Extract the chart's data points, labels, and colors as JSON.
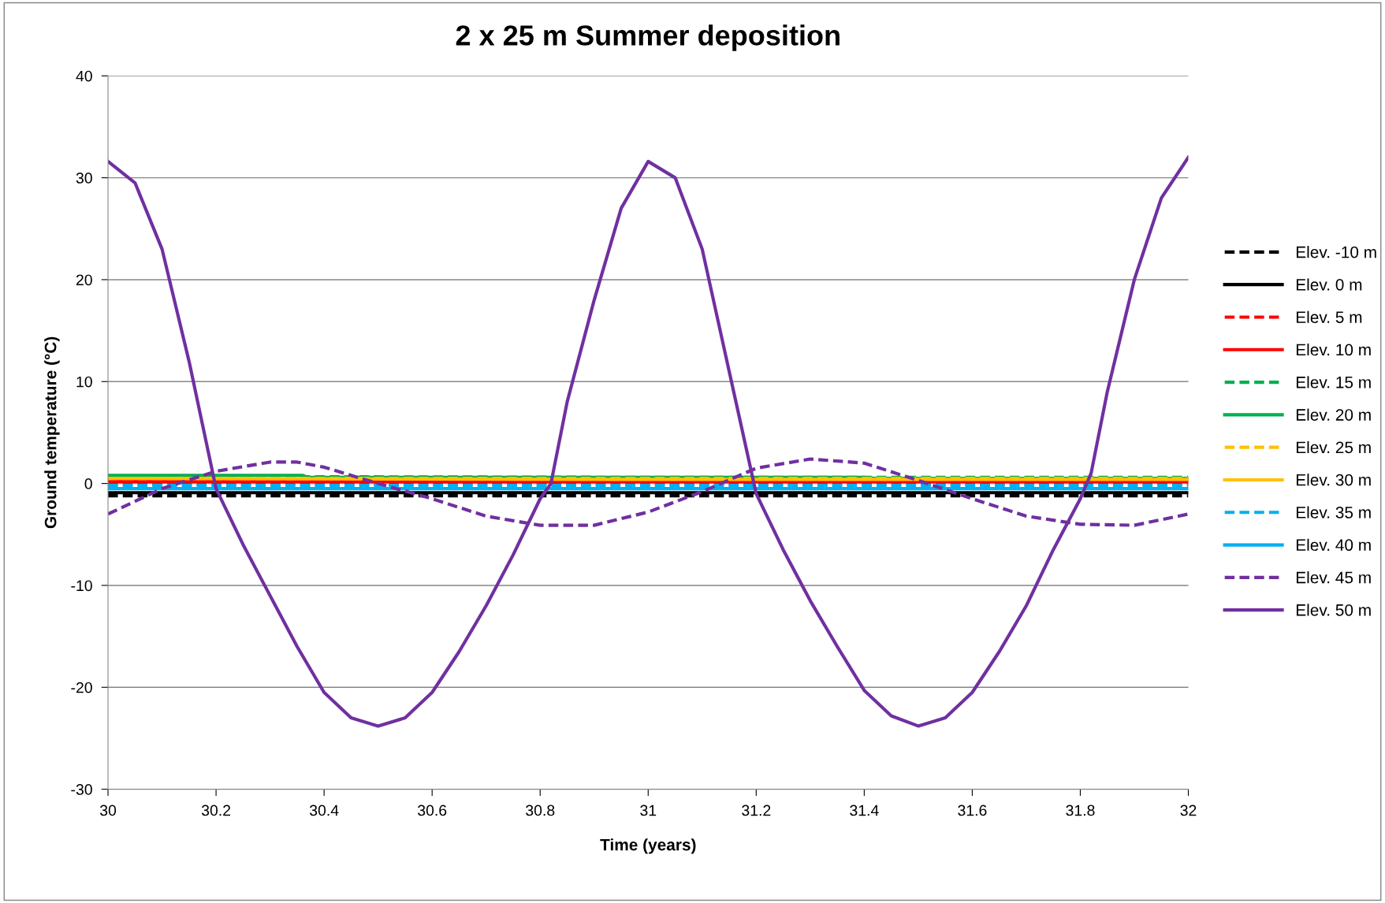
{
  "chart_data": {
    "type": "line",
    "title": "2 x 25 m Summer deposition",
    "xlabel": "Time (years)",
    "ylabel": "Ground temperature (°C)",
    "xlim": [
      30,
      32
    ],
    "xticks": [
      30,
      30.2,
      30.4,
      30.6,
      30.8,
      31,
      31.2,
      31.4,
      31.6,
      31.8,
      32
    ],
    "ylim": [
      -30,
      40
    ],
    "yticks": [
      -30,
      -20,
      -10,
      0,
      10,
      20,
      30,
      40
    ],
    "grid": "y",
    "legend": "right",
    "marker": "none",
    "series": [
      {
        "name": "Elev. -10 m",
        "color": "#000000",
        "line_style": "dashed",
        "x": [
          30,
          31,
          32
        ],
        "values": [
          -1.2,
          -1.2,
          -1.2
        ]
      },
      {
        "name": "Elev. 0 m",
        "color": "#000000",
        "line_style": "solid",
        "x": [
          30,
          31,
          32
        ],
        "values": [
          -0.9,
          -0.9,
          -0.9
        ]
      },
      {
        "name": "Elev. 5 m",
        "color": "#ff0000",
        "line_style": "dashed",
        "x": [
          30,
          31,
          32
        ],
        "values": [
          -0.1,
          -0.1,
          -0.1
        ]
      },
      {
        "name": "Elev. 10 m",
        "color": "#ff0000",
        "line_style": "solid",
        "x": [
          30,
          31,
          32
        ],
        "values": [
          0.2,
          0.2,
          0.2
        ]
      },
      {
        "name": "Elev. 15 m",
        "color": "#00b050",
        "line_style": "dashed",
        "x": [
          30,
          31,
          32
        ],
        "values": [
          0.7,
          0.6,
          0.6
        ]
      },
      {
        "name": "Elev. 20 m",
        "color": "#00b050",
        "line_style": "solid",
        "x": [
          30,
          30.36,
          30.37,
          31.4,
          31.42,
          32
        ],
        "values": [
          0.8,
          0.8,
          0.6,
          0.6,
          0.5,
          0.5
        ]
      },
      {
        "name": "Elev. 25 m",
        "color": "#ffc000",
        "line_style": "dashed",
        "x": [
          30,
          31,
          32
        ],
        "values": [
          0.5,
          0.5,
          0.5
        ]
      },
      {
        "name": "Elev. 30 m",
        "color": "#ffc000",
        "line_style": "solid",
        "x": [
          30,
          31,
          32
        ],
        "values": [
          0.5,
          0.4,
          0.4
        ]
      },
      {
        "name": "Elev. 35 m",
        "color": "#00b0f0",
        "line_style": "dashed",
        "x": [
          30,
          31,
          32
        ],
        "values": [
          -0.2,
          -0.2,
          -0.2
        ]
      },
      {
        "name": "Elev. 40 m",
        "color": "#00b0f0",
        "line_style": "solid",
        "x": [
          30,
          31,
          32
        ],
        "values": [
          -0.5,
          -0.5,
          -0.5
        ]
      },
      {
        "name": "Elev. 45 m",
        "color": "#7030a0",
        "line_style": "dashed",
        "x": [
          30,
          30.1,
          30.2,
          30.3,
          30.35,
          30.4,
          30.5,
          30.6,
          30.7,
          30.8,
          30.9,
          31.0,
          31.1,
          31.2,
          31.3,
          31.4,
          31.5,
          31.6,
          31.7,
          31.8,
          31.9,
          32
        ],
        "values": [
          -3,
          -0.5,
          1.2,
          2.1,
          2.1,
          1.6,
          0,
          -1.5,
          -3.2,
          -4.1,
          -4.1,
          -2.8,
          -0.8,
          1.5,
          2.4,
          2,
          0.3,
          -1.5,
          -3.2,
          -4,
          -4.1,
          -3
        ]
      },
      {
        "name": "Elev. 50 m",
        "color": "#7030a0",
        "line_style": "solid",
        "x": [
          30,
          30.05,
          30.1,
          30.15,
          30.2,
          30.25,
          30.3,
          30.35,
          30.4,
          30.45,
          30.5,
          30.55,
          30.6,
          30.65,
          30.7,
          30.75,
          30.8,
          30.82,
          30.85,
          30.9,
          30.95,
          31.0,
          31.05,
          31.1,
          31.15,
          31.2,
          31.25,
          31.3,
          31.35,
          31.4,
          31.45,
          31.5,
          31.55,
          31.6,
          31.65,
          31.7,
          31.75,
          31.8,
          31.82,
          31.85,
          31.9,
          31.95,
          32
        ],
        "values": [
          31.6,
          29.5,
          23,
          12,
          -0.5,
          -6,
          -11,
          -16,
          -20.5,
          -23,
          -23.8,
          -23,
          -20.5,
          -16.5,
          -12,
          -7,
          -1.5,
          0,
          8,
          18,
          27,
          31.6,
          30,
          23,
          11,
          -1,
          -6.5,
          -11.5,
          -16,
          -20.3,
          -22.8,
          -23.8,
          -23,
          -20.5,
          -16.5,
          -12,
          -6.5,
          -1.5,
          1,
          9,
          20,
          28,
          32
        ]
      }
    ]
  }
}
